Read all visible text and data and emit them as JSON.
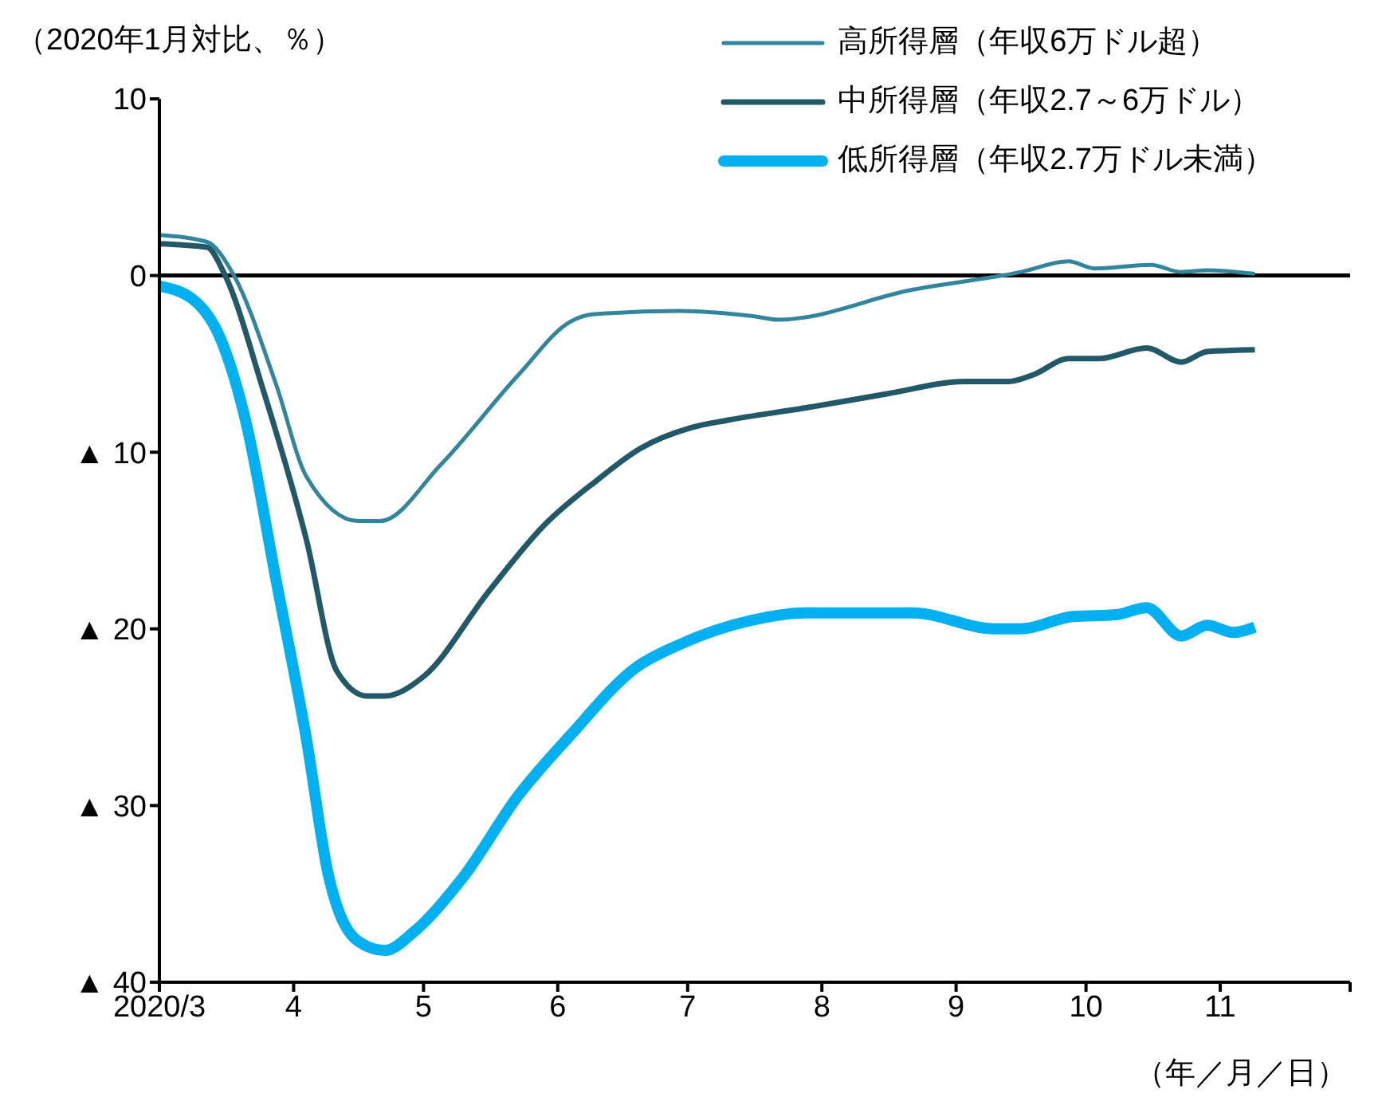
{
  "chart_data": {
    "type": "line",
    "ylabel": "（2020年1月対比、％）",
    "xlabel": "（年／月／日）",
    "xlim": [
      "2020-03-01",
      "2020-12-01"
    ],
    "xticks": [
      {
        "value": "2020-03-01",
        "label": "2020/3"
      },
      {
        "value": "2020-04-01",
        "label": "4"
      },
      {
        "value": "2020-05-01",
        "label": "5"
      },
      {
        "value": "2020-06-01",
        "label": "6"
      },
      {
        "value": "2020-07-01",
        "label": "7"
      },
      {
        "value": "2020-08-01",
        "label": "8"
      },
      {
        "value": "2020-09-01",
        "label": "9"
      },
      {
        "value": "2020-10-01",
        "label": "10"
      },
      {
        "value": "2020-11-01",
        "label": "11"
      },
      {
        "value": "2020-12-01",
        "label": null
      }
    ],
    "ylim": [
      -40,
      10
    ],
    "yticks": [
      10,
      0,
      {
        "value": -10,
        "label": "▲ 10"
      },
      {
        "value": -20,
        "label": "▲ 20"
      },
      {
        "value": -30,
        "label": "▲ 30"
      },
      {
        "value": -40,
        "label": "▲ 40"
      }
    ],
    "ref_lines": [
      {
        "axis": "y",
        "value": 0,
        "color": "#000000"
      }
    ],
    "grid": false,
    "legend": "top right",
    "marker": "none",
    "line_style": "solid",
    "series": [
      {
        "name": "高所得層（年収6万ドル超）",
        "color": "#31859c",
        "x": [
          "2020-03-01",
          "2020-03-12",
          "2020-03-18",
          "2020-03-28",
          "2020-04-04",
          "2020-04-16",
          "2020-04-21",
          "2020-05-05",
          "2020-05-23",
          "2020-06-04",
          "2020-06-09",
          "2020-06-29",
          "2020-07-16",
          "2020-07-22",
          "2020-08-22",
          "2020-09-16",
          "2020-09-27",
          "2020-10-03",
          "2020-10-16",
          "2020-10-23",
          "2020-10-29",
          "2020-11-09"
        ],
        "values": [
          2.3,
          1.9,
          0.1,
          -6.2,
          -11.4,
          -13.9,
          -13.9,
          -10.7,
          -5.6,
          -2.6,
          -2.2,
          -2.0,
          -2.3,
          -2.5,
          -0.8,
          0.2,
          0.8,
          0.4,
          0.6,
          0.2,
          0.3,
          0.1
        ]
      },
      {
        "name": "中所得層（年収2.7～6万ドル）",
        "color": "#215968",
        "x": [
          "2020-03-01",
          "2020-03-12",
          "2020-03-16",
          "2020-03-25",
          "2020-04-04",
          "2020-04-11",
          "2020-04-18",
          "2020-04-22",
          "2020-05-01",
          "2020-05-16",
          "2020-05-29",
          "2020-06-10",
          "2020-06-20",
          "2020-07-02",
          "2020-07-10",
          "2020-07-28",
          "2020-08-16",
          "2020-09-03",
          "2020-09-13",
          "2020-09-19",
          "2020-09-27",
          "2020-10-04",
          "2020-10-15",
          "2020-10-23",
          "2020-10-29",
          "2020-11-09"
        ],
        "values": [
          1.8,
          1.6,
          0.1,
          -6.5,
          -15.0,
          -22.4,
          -23.8,
          -23.8,
          -22.7,
          -17.9,
          -14.1,
          -11.6,
          -9.8,
          -8.6,
          -8.2,
          -7.5,
          -6.7,
          -6.0,
          -6.0,
          -5.6,
          -4.7,
          -4.7,
          -4.1,
          -4.9,
          -4.3,
          -4.2
        ]
      },
      {
        "name": "低所得層（年収2.7万ドル未満）",
        "color": "#00b0f0",
        "x": [
          "2020-03-01",
          "2020-03-09",
          "2020-03-15",
          "2020-03-21",
          "2020-03-28",
          "2020-04-04",
          "2020-04-09",
          "2020-04-16",
          "2020-04-22",
          "2020-04-29",
          "2020-05-10",
          "2020-05-23",
          "2020-06-04",
          "2020-06-19",
          "2020-06-29",
          "2020-07-16",
          "2020-07-28",
          "2020-08-22",
          "2020-09-10",
          "2020-09-16",
          "2020-09-28",
          "2020-10-08",
          "2020-10-15",
          "2020-10-23",
          "2020-10-29",
          "2020-11-04",
          "2020-11-09"
        ],
        "values": [
          -0.6,
          -1.4,
          -3.5,
          -8.3,
          -17.3,
          -26.3,
          -33.9,
          -37.7,
          -38.2,
          -37.1,
          -34.1,
          -29.4,
          -26.0,
          -22.2,
          -20.9,
          -19.5,
          -19.1,
          -19.1,
          -20.0,
          -20.0,
          -19.3,
          -19.2,
          -18.8,
          -20.4,
          -19.8,
          -20.2,
          -19.9
        ]
      }
    ]
  }
}
